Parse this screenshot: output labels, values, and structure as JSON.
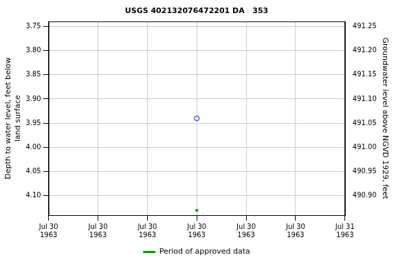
{
  "chart_data": {
    "type": "scatter",
    "title": "USGS 402132076472201 DA   353",
    "y_label": "Depth to water level, feet below land surface",
    "y2_label": "Groundwater level above NGVD 1929, feet",
    "categories": [
      "Jul 30 1963",
      "Jul 30 1963",
      "Jul 30 1963",
      "Jul 30 1963",
      "Jul 30 1963",
      "Jul 30 1963",
      "Jul 31 1963"
    ],
    "series": [
      {
        "color": "#0000ff",
        "marker": "open_circle",
        "values": [
          null,
          null,
          null,
          3.94,
          null,
          null,
          null
        ]
      },
      {
        "name": "Period of approved data",
        "color": "#00a000",
        "marker": "square",
        "values": [
          null,
          null,
          null,
          4.13,
          null,
          null,
          null
        ]
      }
    ],
    "ylim": [
      4.14,
      3.74
    ],
    "yticks": [
      3.75,
      {
        "value": 3.8,
        "label": "3.80"
      },
      3.85,
      {
        "value": 3.9,
        "label": "3.90"
      },
      3.95,
      {
        "value": 4.0,
        "label": "4.00"
      },
      4.05,
      {
        "value": 4.1,
        "label": "4.10"
      }
    ],
    "y2lim": [
      490.86,
      491.26
    ],
    "y2ticks": [
      {
        "value": 490.9,
        "label": "490.90"
      },
      490.95,
      {
        "value": 491.0,
        "label": "491.00"
      },
      491.05,
      {
        "value": 491.1,
        "label": "491.10"
      },
      491.15,
      {
        "value": 491.2,
        "label": "491.20"
      },
      491.25
    ],
    "grid": true,
    "legend": "bottom"
  }
}
